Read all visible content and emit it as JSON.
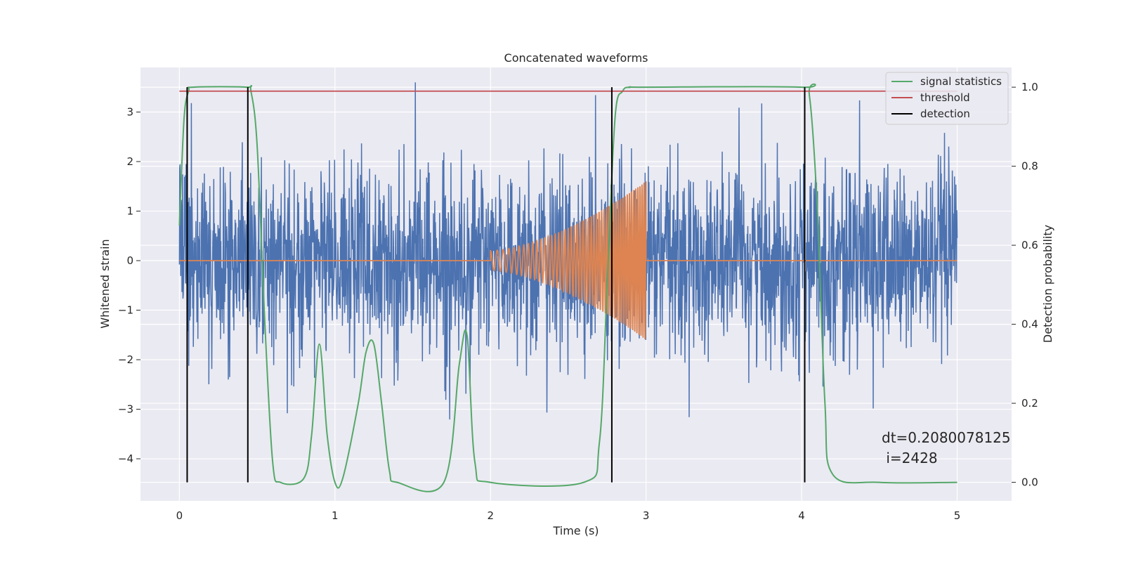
{
  "chart_data": {
    "type": "line",
    "title": "Concatenated waveforms",
    "xlabel": "Time (s)",
    "ylabel": "Whitened strain",
    "y2label": "Detection probability",
    "xlim": [
      -0.25,
      5.35
    ],
    "ylim": [
      -4.85,
      3.9
    ],
    "y2lim": [
      -0.047,
      1.05
    ],
    "xticks": [
      0,
      1,
      2,
      3,
      4,
      5
    ],
    "xtick_labels": [
      "0",
      "1",
      "2",
      "3",
      "4",
      "5"
    ],
    "yticks": [
      3,
      2,
      1,
      0,
      -1,
      -2,
      -3,
      -4
    ],
    "ytick_labels": [
      "3",
      "2",
      "1",
      "0",
      "−1",
      "−2",
      "−3",
      "−4"
    ],
    "y2ticks": [
      1.0,
      0.8,
      0.6,
      0.4,
      0.2,
      0.0
    ],
    "y2tick_labels": [
      "1.0",
      "0.8",
      "0.6",
      "0.4",
      "0.2",
      "0.0"
    ],
    "grid": true,
    "legend_position": "upper right",
    "series": [
      {
        "name": "",
        "color": "#4c72b0",
        "kind": "noise",
        "x_range": [
          0,
          5
        ],
        "amplitude_envelope": [
          -3.6,
          3.6
        ]
      },
      {
        "name": "",
        "color": "#dd8452",
        "kind": "chirp",
        "x_range": [
          0,
          5
        ],
        "chirp_start": 2.0,
        "chirp_end": 3.0,
        "amplitude_start": 0.2,
        "amplitude_end": 1.6
      },
      {
        "name": "signal statistics",
        "color": "#55a868",
        "axis": "right",
        "x": [
          0.0,
          0.03,
          0.06,
          0.09,
          0.43,
          0.46,
          0.5,
          0.55,
          0.6,
          0.65,
          0.8,
          0.85,
          0.9,
          0.95,
          1.0,
          1.05,
          1.15,
          1.2,
          1.25,
          1.3,
          1.35,
          1.4,
          1.7,
          1.8,
          1.85,
          1.9,
          2.0,
          2.6,
          2.7,
          2.75,
          2.8,
          2.85,
          2.9,
          3.0,
          4.0,
          4.05,
          4.1,
          4.15,
          4.2,
          4.5,
          5.0
        ],
        "y": [
          0.65,
          0.92,
          0.99,
          1.0,
          1.0,
          0.99,
          0.85,
          0.4,
          0.05,
          0.0,
          0.01,
          0.12,
          0.35,
          0.12,
          0.0,
          0.01,
          0.2,
          0.33,
          0.35,
          0.2,
          0.03,
          0.0,
          0.0,
          0.3,
          0.37,
          0.05,
          0.0,
          0.0,
          0.1,
          0.5,
          0.92,
          0.99,
          1.0,
          1.0,
          1.0,
          0.98,
          0.7,
          0.2,
          0.02,
          0.0,
          0.0
        ]
      },
      {
        "name": "threshold",
        "color": "#c44e52",
        "axis": "right",
        "x": [
          0,
          5
        ],
        "y": [
          0.99,
          0.99
        ]
      },
      {
        "name": "detection",
        "color": "#000000",
        "axis": "right",
        "vlines": [
          0.05,
          0.44,
          2.78,
          4.02
        ],
        "ymin": 0,
        "ymax": 1
      }
    ],
    "annotation": {
      "lines": [
        "dt=0.2080078125",
        " i=2428"
      ]
    }
  }
}
